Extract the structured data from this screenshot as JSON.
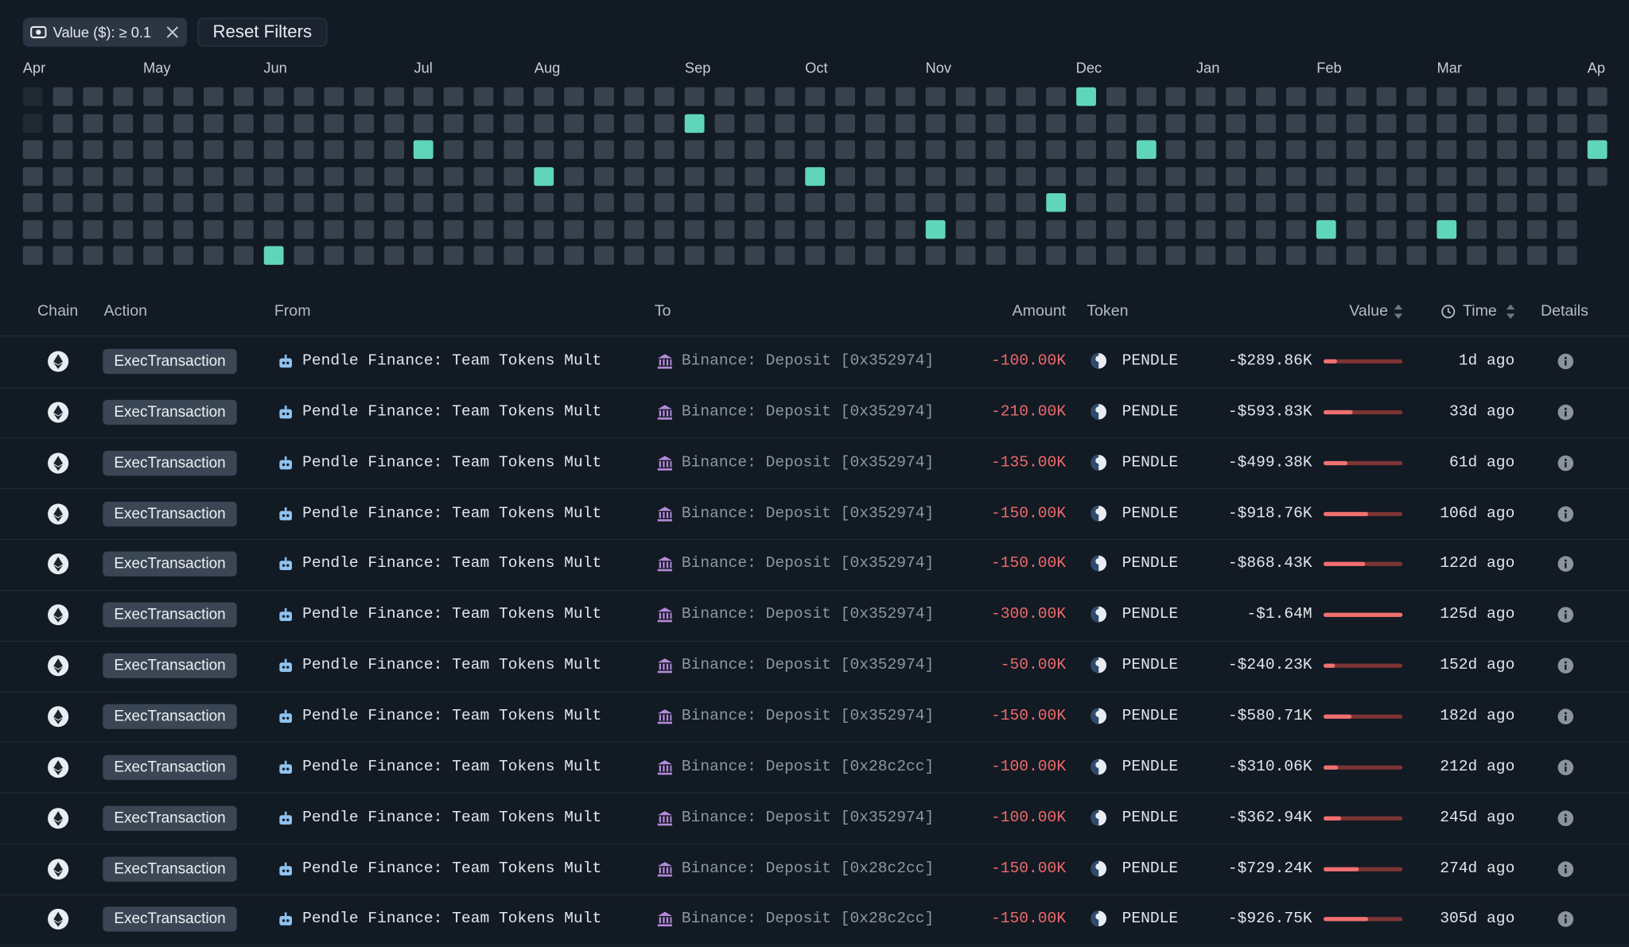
{
  "filters": {
    "chip": "Value ($): ≥ 0.1",
    "reset": "Reset Filters"
  },
  "heatmap": {
    "months": [
      {
        "label": "Apr",
        "week": 0
      },
      {
        "label": "May",
        "week": 4
      },
      {
        "label": "Jun",
        "week": 8
      },
      {
        "label": "Jul",
        "week": 13
      },
      {
        "label": "Aug",
        "week": 17
      },
      {
        "label": "Sep",
        "week": 22
      },
      {
        "label": "Oct",
        "week": 26
      },
      {
        "label": "Nov",
        "week": 30
      },
      {
        "label": "Dec",
        "week": 35
      },
      {
        "label": "Jan",
        "week": 39
      },
      {
        "label": "Feb",
        "week": 43
      },
      {
        "label": "Mar",
        "week": 47
      },
      {
        "label": "Ap",
        "week": 52
      }
    ],
    "active": [
      {
        "week": 35,
        "day": 0
      },
      {
        "week": 22,
        "day": 1
      },
      {
        "week": 13,
        "day": 2
      },
      {
        "week": 37,
        "day": 2
      },
      {
        "week": 52,
        "day": 2
      },
      {
        "week": 17,
        "day": 3
      },
      {
        "week": 26,
        "day": 3
      },
      {
        "week": 34,
        "day": 4
      },
      {
        "week": 30,
        "day": 5
      },
      {
        "week": 43,
        "day": 5
      },
      {
        "week": 47,
        "day": 5
      },
      {
        "week": 8,
        "day": 6
      }
    ]
  },
  "table": {
    "columns": {
      "chain": "Chain",
      "action": "Action",
      "from": "From",
      "to": "To",
      "amount": "Amount",
      "token": "Token",
      "value": "Value",
      "time": "Time",
      "details": "Details"
    },
    "rows": [
      {
        "action": "ExecTransaction",
        "from": "Pendle Finance: Team Tokens Mult",
        "to": "Binance: Deposit [0x352974]",
        "amount": "-100.00K",
        "token": "PENDLE",
        "value": -289860,
        "value_label": "-$289.86K",
        "time": "1d ago"
      },
      {
        "action": "ExecTransaction",
        "from": "Pendle Finance: Team Tokens Mult",
        "to": "Binance: Deposit [0x352974]",
        "amount": "-210.00K",
        "token": "PENDLE",
        "value": -593830,
        "value_label": "-$593.83K",
        "time": "33d ago"
      },
      {
        "action": "ExecTransaction",
        "from": "Pendle Finance: Team Tokens Mult",
        "to": "Binance: Deposit [0x352974]",
        "amount": "-135.00K",
        "token": "PENDLE",
        "value": -499380,
        "value_label": "-$499.38K",
        "time": "61d ago"
      },
      {
        "action": "ExecTransaction",
        "from": "Pendle Finance: Team Tokens Mult",
        "to": "Binance: Deposit [0x352974]",
        "amount": "-150.00K",
        "token": "PENDLE",
        "value": -918760,
        "value_label": "-$918.76K",
        "time": "106d ago"
      },
      {
        "action": "ExecTransaction",
        "from": "Pendle Finance: Team Tokens Mult",
        "to": "Binance: Deposit [0x352974]",
        "amount": "-150.00K",
        "token": "PENDLE",
        "value": -868430,
        "value_label": "-$868.43K",
        "time": "122d ago"
      },
      {
        "action": "ExecTransaction",
        "from": "Pendle Finance: Team Tokens Mult",
        "to": "Binance: Deposit [0x352974]",
        "amount": "-300.00K",
        "token": "PENDLE",
        "value": -1640000,
        "value_label": "-$1.64M",
        "time": "125d ago"
      },
      {
        "action": "ExecTransaction",
        "from": "Pendle Finance: Team Tokens Mult",
        "to": "Binance: Deposit [0x352974]",
        "amount": "-50.00K",
        "token": "PENDLE",
        "value": -240230,
        "value_label": "-$240.23K",
        "time": "152d ago"
      },
      {
        "action": "ExecTransaction",
        "from": "Pendle Finance: Team Tokens Mult",
        "to": "Binance: Deposit [0x352974]",
        "amount": "-150.00K",
        "token": "PENDLE",
        "value": -580710,
        "value_label": "-$580.71K",
        "time": "182d ago"
      },
      {
        "action": "ExecTransaction",
        "from": "Pendle Finance: Team Tokens Mult",
        "to": "Binance: Deposit [0x28c2cc]",
        "amount": "-100.00K",
        "token": "PENDLE",
        "value": -310060,
        "value_label": "-$310.06K",
        "time": "212d ago"
      },
      {
        "action": "ExecTransaction",
        "from": "Pendle Finance: Team Tokens Mult",
        "to": "Binance: Deposit [0x352974]",
        "amount": "-100.00K",
        "token": "PENDLE",
        "value": -362940,
        "value_label": "-$362.94K",
        "time": "245d ago"
      },
      {
        "action": "ExecTransaction",
        "from": "Pendle Finance: Team Tokens Mult",
        "to": "Binance: Deposit [0x28c2cc]",
        "amount": "-150.00K",
        "token": "PENDLE",
        "value": -729240,
        "value_label": "-$729.24K",
        "time": "274d ago"
      },
      {
        "action": "ExecTransaction",
        "from": "Pendle Finance: Team Tokens Mult",
        "to": "Binance: Deposit [0x28c2cc]",
        "amount": "-150.00K",
        "token": "PENDLE",
        "value": -926750,
        "value_label": "-$926.75K",
        "time": "305d ago"
      }
    ]
  }
}
